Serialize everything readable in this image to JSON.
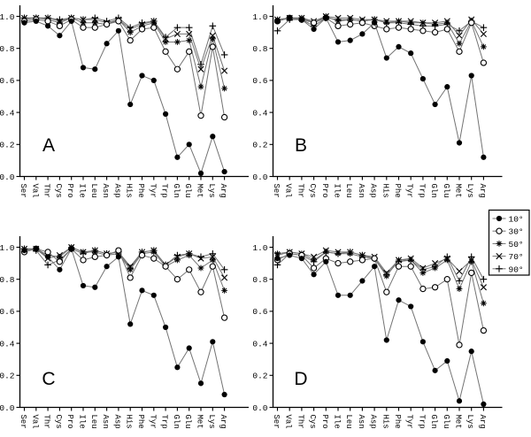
{
  "figure": {
    "background": "#ffffff",
    "marker_color": "#000000",
    "line_color": "#737373",
    "axis_color": "#000000"
  },
  "legend": {
    "position": "right-middle",
    "border_color": "#000000",
    "entries": [
      {
        "label": "10°",
        "marker": "filled-circle"
      },
      {
        "label": "30°",
        "marker": "open-circle"
      },
      {
        "label": "50°",
        "marker": "asterisk"
      },
      {
        "label": "70°",
        "marker": "x-cross"
      },
      {
        "label": "90°",
        "marker": "plus"
      }
    ]
  },
  "chart_data": [
    {
      "type": "line",
      "panel_label": "A",
      "categories": [
        "Ser",
        "Val",
        "Thr",
        "Cys",
        "Pro",
        "Ile",
        "Leu",
        "Asn",
        "Asp",
        "His",
        "Phe",
        "Tyr",
        "Trp",
        "Gln",
        "Glu",
        "Met",
        "Lys",
        "Arg"
      ],
      "ylim": [
        0,
        1.05
      ],
      "ytick_labels": [
        "0.0",
        "0.2",
        "0.4",
        "0.6",
        "0.8",
        "1.0"
      ],
      "grid": false,
      "series": [
        {
          "name": "10°",
          "marker": "filled-circle",
          "values": [
            0.96,
            0.97,
            0.94,
            0.88,
            0.97,
            0.68,
            0.67,
            0.83,
            0.91,
            0.45,
            0.63,
            0.6,
            0.39,
            0.12,
            0.2,
            0.02,
            0.25,
            0.03
          ]
        },
        {
          "name": "30°",
          "marker": "open-circle",
          "values": [
            0.97,
            0.98,
            0.97,
            0.94,
            0.98,
            0.93,
            0.93,
            0.95,
            0.97,
            0.85,
            0.92,
            0.93,
            0.78,
            0.67,
            0.78,
            0.38,
            0.81,
            0.37
          ]
        },
        {
          "name": "50°",
          "marker": "asterisk",
          "values": [
            0.98,
            0.99,
            0.98,
            0.96,
            0.99,
            0.96,
            0.96,
            0.95,
            0.98,
            0.9,
            0.94,
            0.96,
            0.84,
            0.84,
            0.85,
            0.56,
            0.86,
            0.55
          ]
        },
        {
          "name": "70°",
          "marker": "x-cross",
          "values": [
            0.99,
            0.99,
            0.99,
            0.97,
            0.99,
            0.98,
            0.98,
            0.96,
            0.98,
            0.92,
            0.95,
            0.97,
            0.86,
            0.89,
            0.89,
            0.67,
            0.88,
            0.66
          ]
        },
        {
          "name": "90°",
          "marker": "plus",
          "values": [
            0.99,
            0.99,
            0.99,
            0.98,
            0.99,
            0.98,
            0.99,
            0.97,
            0.99,
            0.93,
            0.96,
            0.97,
            0.87,
            0.93,
            0.93,
            0.7,
            0.94,
            0.76
          ]
        }
      ]
    },
    {
      "type": "line",
      "panel_label": "B",
      "categories": [
        "Ser",
        "Val",
        "Thr",
        "Cys",
        "Pro",
        "Ile",
        "Leu",
        "Asn",
        "Asp",
        "His",
        "Phe",
        "Tyr",
        "Trp",
        "Gln",
        "Glu",
        "Met",
        "Lys",
        "Arg"
      ],
      "ylim": [
        0,
        1.05
      ],
      "ytick_labels": [
        "0.0",
        "0.2",
        "0.4",
        "0.6",
        "0.8",
        "1.0"
      ],
      "grid": false,
      "series": [
        {
          "name": "10°",
          "marker": "filled-circle",
          "values": [
            0.97,
            0.99,
            0.98,
            0.92,
            0.99,
            0.84,
            0.85,
            0.89,
            0.96,
            0.74,
            0.81,
            0.77,
            0.61,
            0.45,
            0.56,
            0.21,
            0.63,
            0.12
          ]
        },
        {
          "name": "30°",
          "marker": "open-circle",
          "values": [
            0.97,
            0.99,
            0.98,
            0.96,
            0.99,
            0.94,
            0.95,
            0.96,
            0.94,
            0.92,
            0.93,
            0.92,
            0.91,
            0.9,
            0.92,
            0.78,
            0.96,
            0.71
          ]
        },
        {
          "name": "50°",
          "marker": "asterisk",
          "values": [
            0.98,
            0.99,
            0.99,
            0.96,
            1.0,
            0.97,
            0.98,
            0.97,
            0.98,
            0.96,
            0.97,
            0.96,
            0.96,
            0.95,
            0.96,
            0.83,
            0.97,
            0.81
          ]
        },
        {
          "name": "70°",
          "marker": "x-cross",
          "values": [
            0.98,
            0.99,
            0.99,
            0.97,
            1.0,
            0.99,
            0.99,
            0.98,
            0.98,
            0.97,
            0.97,
            0.97,
            0.96,
            0.96,
            0.97,
            0.88,
            0.98,
            0.89
          ]
        },
        {
          "name": "90°",
          "marker": "plus",
          "values": [
            0.91,
            0.98,
            0.98,
            0.94,
            0.99,
            0.98,
            0.98,
            0.97,
            0.98,
            0.96,
            0.96,
            0.95,
            0.94,
            0.94,
            0.95,
            0.91,
            0.97,
            0.93
          ]
        }
      ]
    },
    {
      "type": "line",
      "panel_label": "C",
      "categories": [
        "Ser",
        "Val",
        "Thr",
        "Cys",
        "Pro",
        "Ile",
        "Leu",
        "Asn",
        "Asp",
        "His",
        "Phe",
        "Tyr",
        "Trp",
        "Gln",
        "Glu",
        "Met",
        "Lys",
        "Arg"
      ],
      "ylim": [
        0,
        1.05
      ],
      "ytick_labels": [
        "0.0",
        "0.2",
        "0.4",
        "0.6",
        "0.8",
        "1.0"
      ],
      "grid": false,
      "series": [
        {
          "name": "10°",
          "marker": "filled-circle",
          "values": [
            0.98,
            0.99,
            0.94,
            0.86,
            0.99,
            0.76,
            0.75,
            0.88,
            0.94,
            0.52,
            0.73,
            0.7,
            0.5,
            0.25,
            0.37,
            0.15,
            0.41,
            0.08
          ]
        },
        {
          "name": "30°",
          "marker": "open-circle",
          "values": [
            0.97,
            0.99,
            0.97,
            0.91,
            0.99,
            0.92,
            0.94,
            0.95,
            0.98,
            0.81,
            0.95,
            0.93,
            0.88,
            0.8,
            0.86,
            0.72,
            0.88,
            0.56
          ]
        },
        {
          "name": "50°",
          "marker": "asterisk",
          "values": [
            0.99,
            0.99,
            0.95,
            0.94,
            1.0,
            0.97,
            0.97,
            0.95,
            0.96,
            0.86,
            0.96,
            0.97,
            0.88,
            0.92,
            0.95,
            0.87,
            0.92,
            0.73
          ]
        },
        {
          "name": "70°",
          "marker": "x-cross",
          "values": [
            0.99,
            0.99,
            0.93,
            0.95,
            1.0,
            0.97,
            0.98,
            0.96,
            0.97,
            0.88,
            0.97,
            0.98,
            0.89,
            0.94,
            0.96,
            0.93,
            0.94,
            0.81
          ]
        },
        {
          "name": "90°",
          "marker": "plus",
          "values": [
            0.99,
            0.98,
            0.89,
            0.92,
            0.99,
            0.96,
            0.98,
            0.96,
            0.97,
            0.87,
            0.97,
            0.98,
            0.89,
            0.95,
            0.96,
            0.94,
            0.96,
            0.86
          ]
        }
      ]
    },
    {
      "type": "line",
      "panel_label": "D",
      "categories": [
        "Ser",
        "Val",
        "Thr",
        "Cys",
        "Pro",
        "Ile",
        "Leu",
        "Asn",
        "Asp",
        "His",
        "Phe",
        "Tyr",
        "Trp",
        "Gln",
        "Glu",
        "Met",
        "Lys",
        "Arg"
      ],
      "ylim": [
        0,
        1.05
      ],
      "ytick_labels": [
        "0.0",
        "0.2",
        "0.4",
        "0.6",
        "0.8",
        "1.0"
      ],
      "grid": false,
      "series": [
        {
          "name": "10°",
          "marker": "filled-circle",
          "values": [
            0.93,
            0.95,
            0.93,
            0.83,
            0.91,
            0.7,
            0.7,
            0.79,
            0.88,
            0.42,
            0.67,
            0.63,
            0.41,
            0.23,
            0.29,
            0.04,
            0.35,
            0.02
          ]
        },
        {
          "name": "30°",
          "marker": "open-circle",
          "values": [
            0.92,
            0.96,
            0.95,
            0.87,
            0.93,
            0.9,
            0.91,
            0.92,
            0.93,
            0.72,
            0.88,
            0.88,
            0.74,
            0.75,
            0.8,
            0.39,
            0.84,
            0.48
          ]
        },
        {
          "name": "50°",
          "marker": "asterisk",
          "values": [
            0.96,
            0.97,
            0.96,
            0.92,
            0.97,
            0.96,
            0.96,
            0.94,
            0.93,
            0.82,
            0.92,
            0.92,
            0.84,
            0.87,
            0.92,
            0.74,
            0.91,
            0.65
          ]
        },
        {
          "name": "70°",
          "marker": "x-cross",
          "values": [
            0.95,
            0.97,
            0.96,
            0.94,
            0.98,
            0.97,
            0.97,
            0.95,
            0.94,
            0.84,
            0.92,
            0.93,
            0.87,
            0.9,
            0.93,
            0.85,
            0.92,
            0.75
          ]
        },
        {
          "name": "90°",
          "marker": "plus",
          "values": [
            0.89,
            0.96,
            0.95,
            0.91,
            0.97,
            0.96,
            0.97,
            0.95,
            0.93,
            0.83,
            0.91,
            0.92,
            0.86,
            0.88,
            0.94,
            0.79,
            0.94,
            0.8
          ]
        }
      ]
    }
  ]
}
